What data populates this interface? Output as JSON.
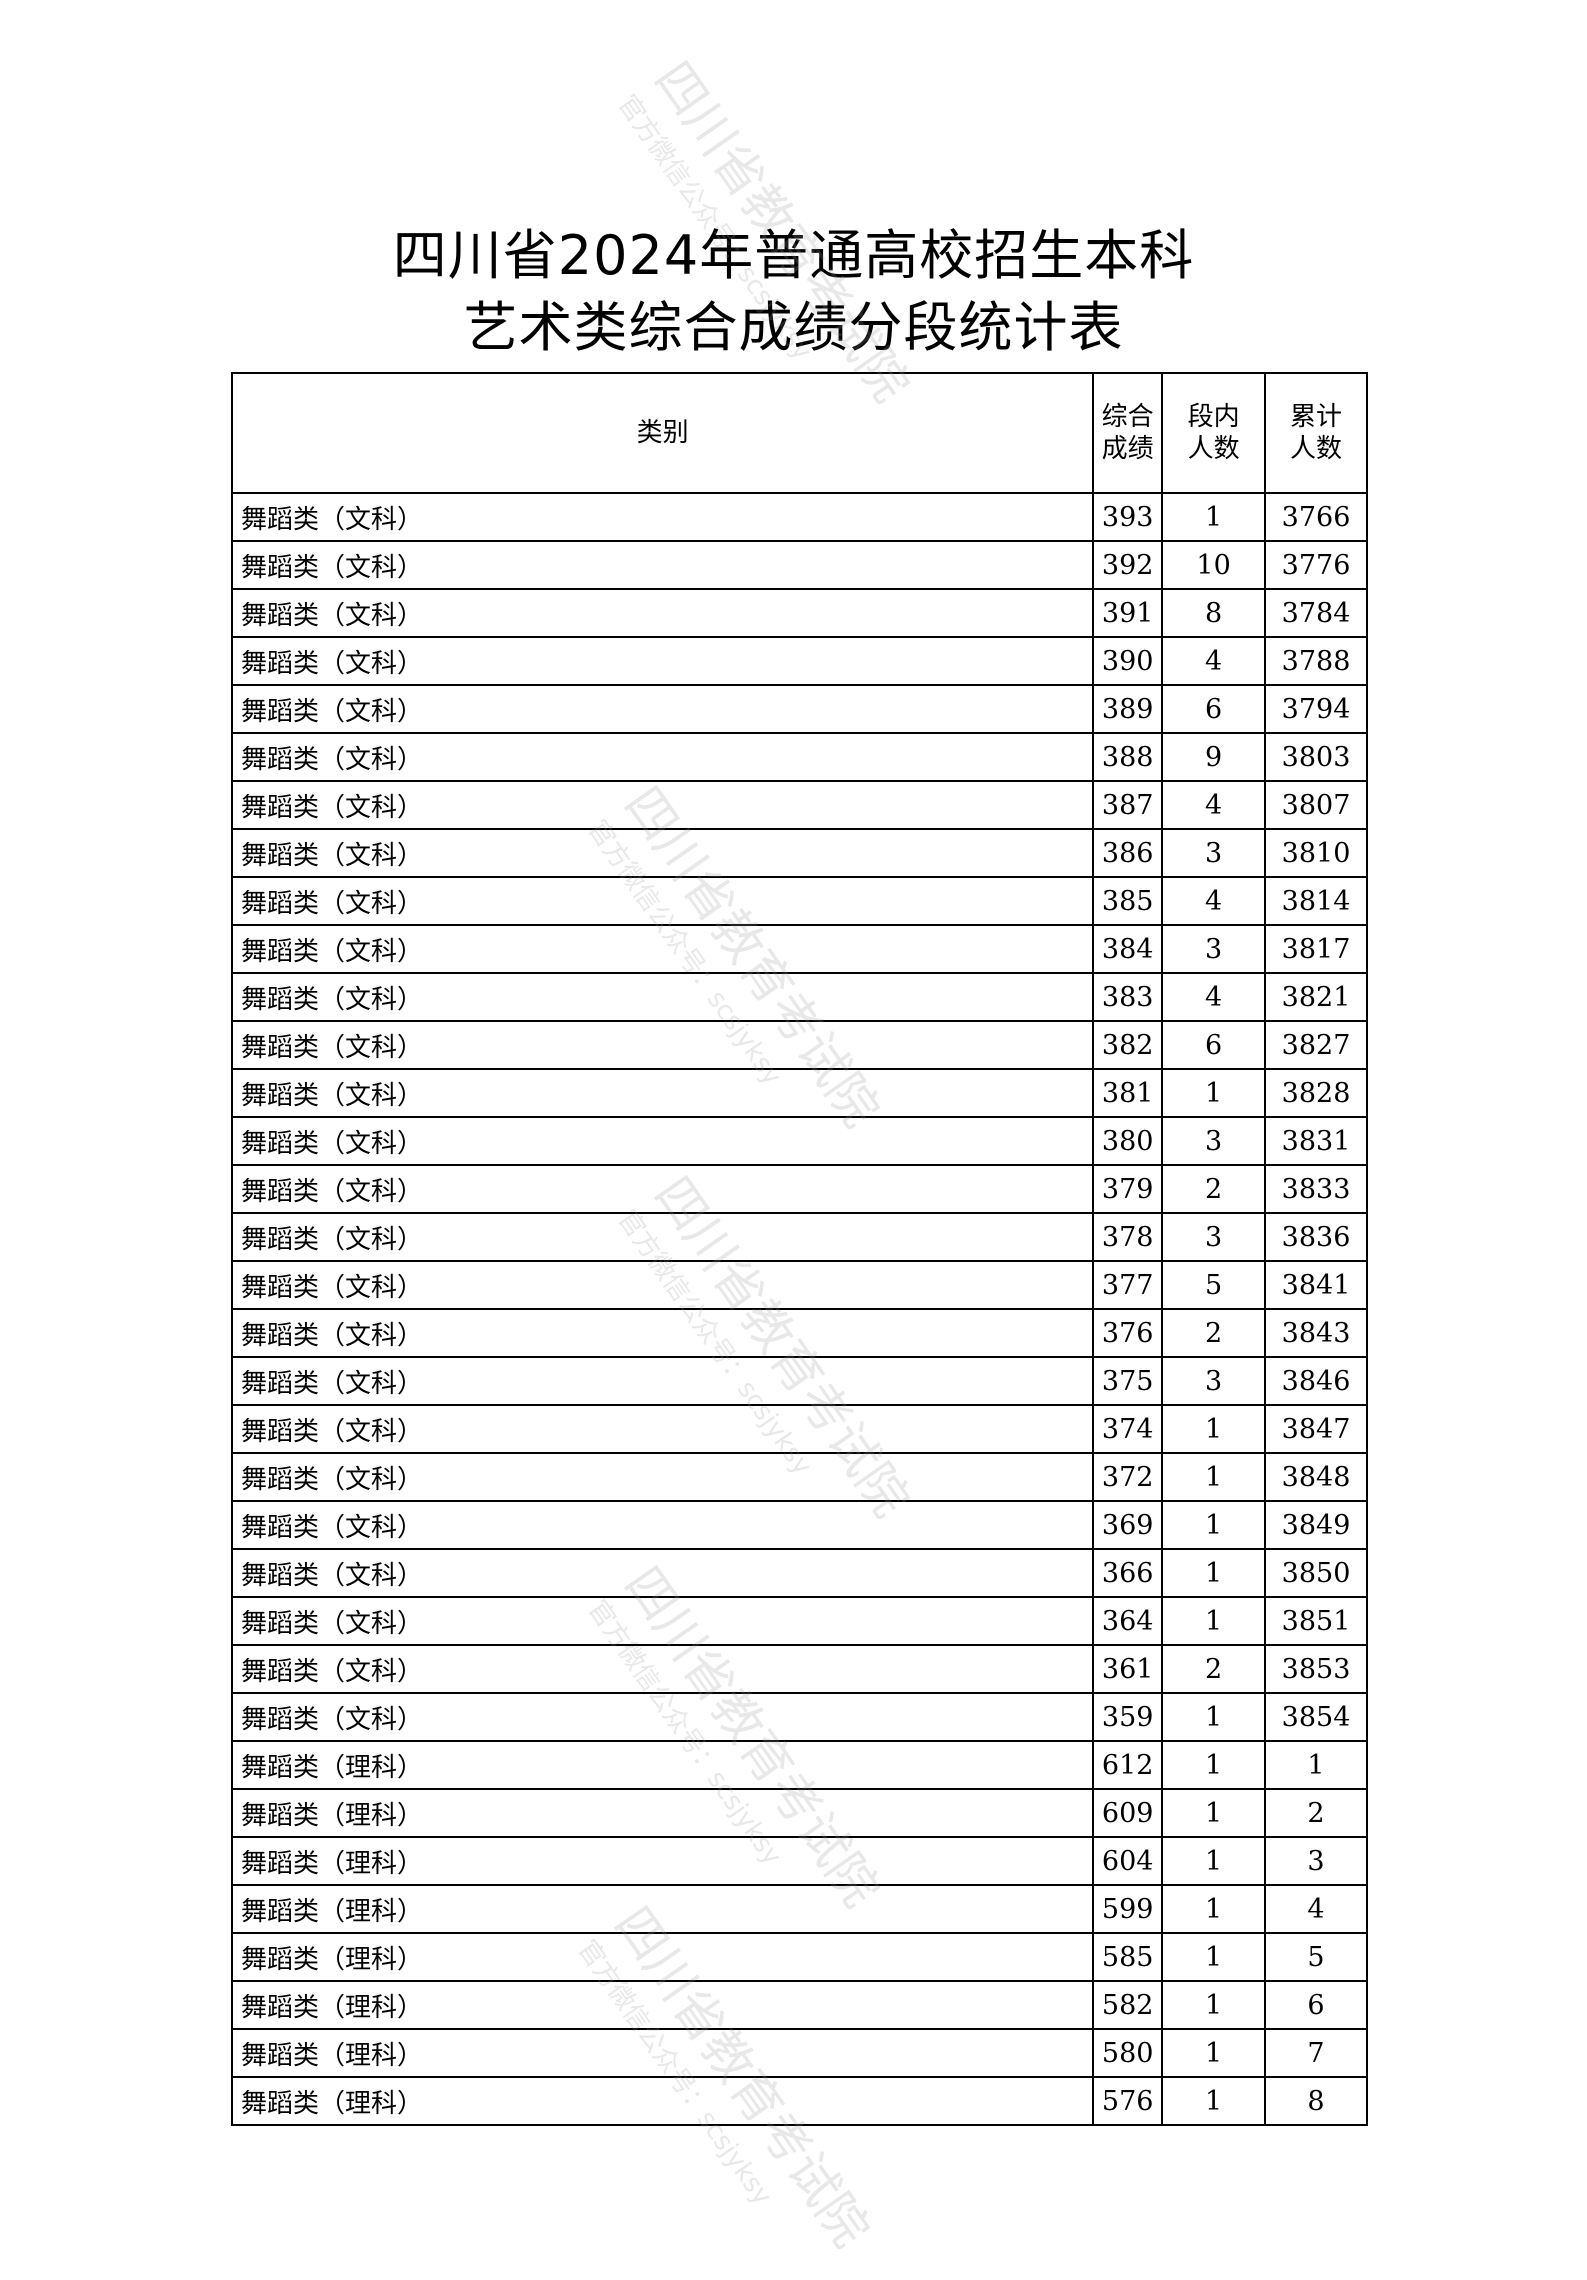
{
  "title": {
    "line1": "四川省2024年普通高校招生本科",
    "line2": "艺术类综合成绩分段统计表"
  },
  "watermark": {
    "main": "四川省教育考试院",
    "sub": "官方微信公众号：scsjyksy"
  },
  "table": {
    "headers": {
      "category": "类别",
      "score": "综合成绩",
      "count": "段内人数",
      "cumulative": "累计人数"
    },
    "rows": [
      {
        "category": "舞蹈类（文科）",
        "score": "393",
        "count": "1",
        "cumulative": "3766"
      },
      {
        "category": "舞蹈类（文科）",
        "score": "392",
        "count": "10",
        "cumulative": "3776"
      },
      {
        "category": "舞蹈类（文科）",
        "score": "391",
        "count": "8",
        "cumulative": "3784"
      },
      {
        "category": "舞蹈类（文科）",
        "score": "390",
        "count": "4",
        "cumulative": "3788"
      },
      {
        "category": "舞蹈类（文科）",
        "score": "389",
        "count": "6",
        "cumulative": "3794"
      },
      {
        "category": "舞蹈类（文科）",
        "score": "388",
        "count": "9",
        "cumulative": "3803"
      },
      {
        "category": "舞蹈类（文科）",
        "score": "387",
        "count": "4",
        "cumulative": "3807"
      },
      {
        "category": "舞蹈类（文科）",
        "score": "386",
        "count": "3",
        "cumulative": "3810"
      },
      {
        "category": "舞蹈类（文科）",
        "score": "385",
        "count": "4",
        "cumulative": "3814"
      },
      {
        "category": "舞蹈类（文科）",
        "score": "384",
        "count": "3",
        "cumulative": "3817"
      },
      {
        "category": "舞蹈类（文科）",
        "score": "383",
        "count": "4",
        "cumulative": "3821"
      },
      {
        "category": "舞蹈类（文科）",
        "score": "382",
        "count": "6",
        "cumulative": "3827"
      },
      {
        "category": "舞蹈类（文科）",
        "score": "381",
        "count": "1",
        "cumulative": "3828"
      },
      {
        "category": "舞蹈类（文科）",
        "score": "380",
        "count": "3",
        "cumulative": "3831"
      },
      {
        "category": "舞蹈类（文科）",
        "score": "379",
        "count": "2",
        "cumulative": "3833"
      },
      {
        "category": "舞蹈类（文科）",
        "score": "378",
        "count": "3",
        "cumulative": "3836"
      },
      {
        "category": "舞蹈类（文科）",
        "score": "377",
        "count": "5",
        "cumulative": "3841"
      },
      {
        "category": "舞蹈类（文科）",
        "score": "376",
        "count": "2",
        "cumulative": "3843"
      },
      {
        "category": "舞蹈类（文科）",
        "score": "375",
        "count": "3",
        "cumulative": "3846"
      },
      {
        "category": "舞蹈类（文科）",
        "score": "374",
        "count": "1",
        "cumulative": "3847"
      },
      {
        "category": "舞蹈类（文科）",
        "score": "372",
        "count": "1",
        "cumulative": "3848"
      },
      {
        "category": "舞蹈类（文科）",
        "score": "369",
        "count": "1",
        "cumulative": "3849"
      },
      {
        "category": "舞蹈类（文科）",
        "score": "366",
        "count": "1",
        "cumulative": "3850"
      },
      {
        "category": "舞蹈类（文科）",
        "score": "364",
        "count": "1",
        "cumulative": "3851"
      },
      {
        "category": "舞蹈类（文科）",
        "score": "361",
        "count": "2",
        "cumulative": "3853"
      },
      {
        "category": "舞蹈类（文科）",
        "score": "359",
        "count": "1",
        "cumulative": "3854"
      },
      {
        "category": "舞蹈类（理科）",
        "score": "612",
        "count": "1",
        "cumulative": "1"
      },
      {
        "category": "舞蹈类（理科）",
        "score": "609",
        "count": "1",
        "cumulative": "2"
      },
      {
        "category": "舞蹈类（理科）",
        "score": "604",
        "count": "1",
        "cumulative": "3"
      },
      {
        "category": "舞蹈类（理科）",
        "score": "599",
        "count": "1",
        "cumulative": "4"
      },
      {
        "category": "舞蹈类（理科）",
        "score": "585",
        "count": "1",
        "cumulative": "5"
      },
      {
        "category": "舞蹈类（理科）",
        "score": "582",
        "count": "1",
        "cumulative": "6"
      },
      {
        "category": "舞蹈类（理科）",
        "score": "580",
        "count": "1",
        "cumulative": "7"
      },
      {
        "category": "舞蹈类（理科）",
        "score": "576",
        "count": "1",
        "cumulative": "8"
      }
    ]
  }
}
